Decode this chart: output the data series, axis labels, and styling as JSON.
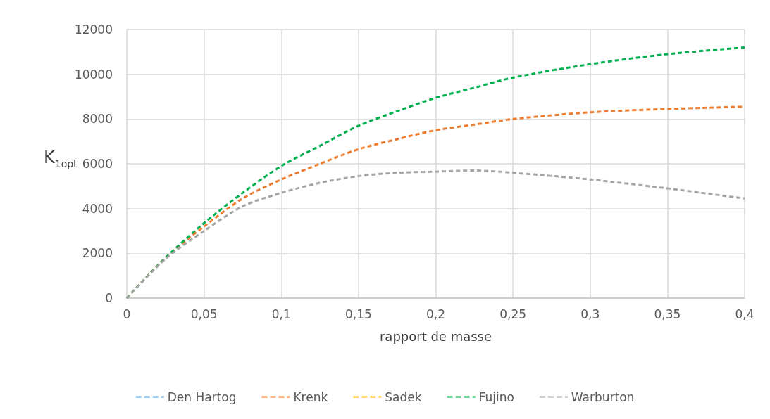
{
  "chart_data": {
    "type": "line",
    "xlabel": "rapport de masse",
    "ylabel": "K$_{1opt}$",
    "x": [
      0,
      0.025,
      0.05,
      0.075,
      0.1,
      0.125,
      0.15,
      0.175,
      0.2,
      0.225,
      0.25,
      0.3,
      0.35,
      0.4
    ],
    "series": [
      {
        "name": "Den Hartog",
        "color": "#5b9bd5",
        "values": [
          null,
          null,
          null,
          null,
          null,
          null,
          null,
          null,
          null,
          null,
          null,
          null,
          null,
          null
        ]
      },
      {
        "name": "Krenk",
        "color": "#ed7d31",
        "values": [
          0,
          1800,
          3200,
          4450,
          5300,
          6000,
          6650,
          7100,
          7500,
          7750,
          8000,
          8300,
          8450,
          8550
        ]
      },
      {
        "name": "Sadek",
        "color": "#ffc000",
        "values": [
          null,
          null,
          null,
          null,
          null,
          null,
          null,
          null,
          null,
          null,
          null,
          null,
          null,
          null
        ]
      },
      {
        "name": "Fujino",
        "color": "#00b050",
        "values": [
          0,
          1800,
          3350,
          4700,
          5900,
          6800,
          7700,
          8350,
          8950,
          9400,
          9850,
          10450,
          10900,
          11200
        ]
      },
      {
        "name": "Warburton",
        "color": "#a5a5a5",
        "values": [
          0,
          1750,
          3000,
          4100,
          4700,
          5150,
          5450,
          5600,
          5650,
          5700,
          5600,
          5300,
          4900,
          4450
        ]
      }
    ],
    "xlim": [
      0,
      0.4
    ],
    "xticks": [
      0,
      {
        "value": 0.05,
        "label": "0,05"
      },
      {
        "value": 0.1,
        "label": "0,1"
      },
      {
        "value": 0.15,
        "label": "0,15"
      },
      {
        "value": 0.2,
        "label": "0,2"
      },
      {
        "value": 0.25,
        "label": "0,25"
      },
      {
        "value": 0.3,
        "label": "0,3"
      },
      {
        "value": 0.35,
        "label": "0,35"
      },
      {
        "value": 0.4,
        "label": "0,4"
      }
    ],
    "ylim": [
      0,
      12000
    ],
    "yticks": [
      0,
      2000,
      4000,
      6000,
      8000,
      10000,
      12000
    ],
    "grid": true,
    "legend": "bottom",
    "marker": "none",
    "line_style": "dashed"
  }
}
